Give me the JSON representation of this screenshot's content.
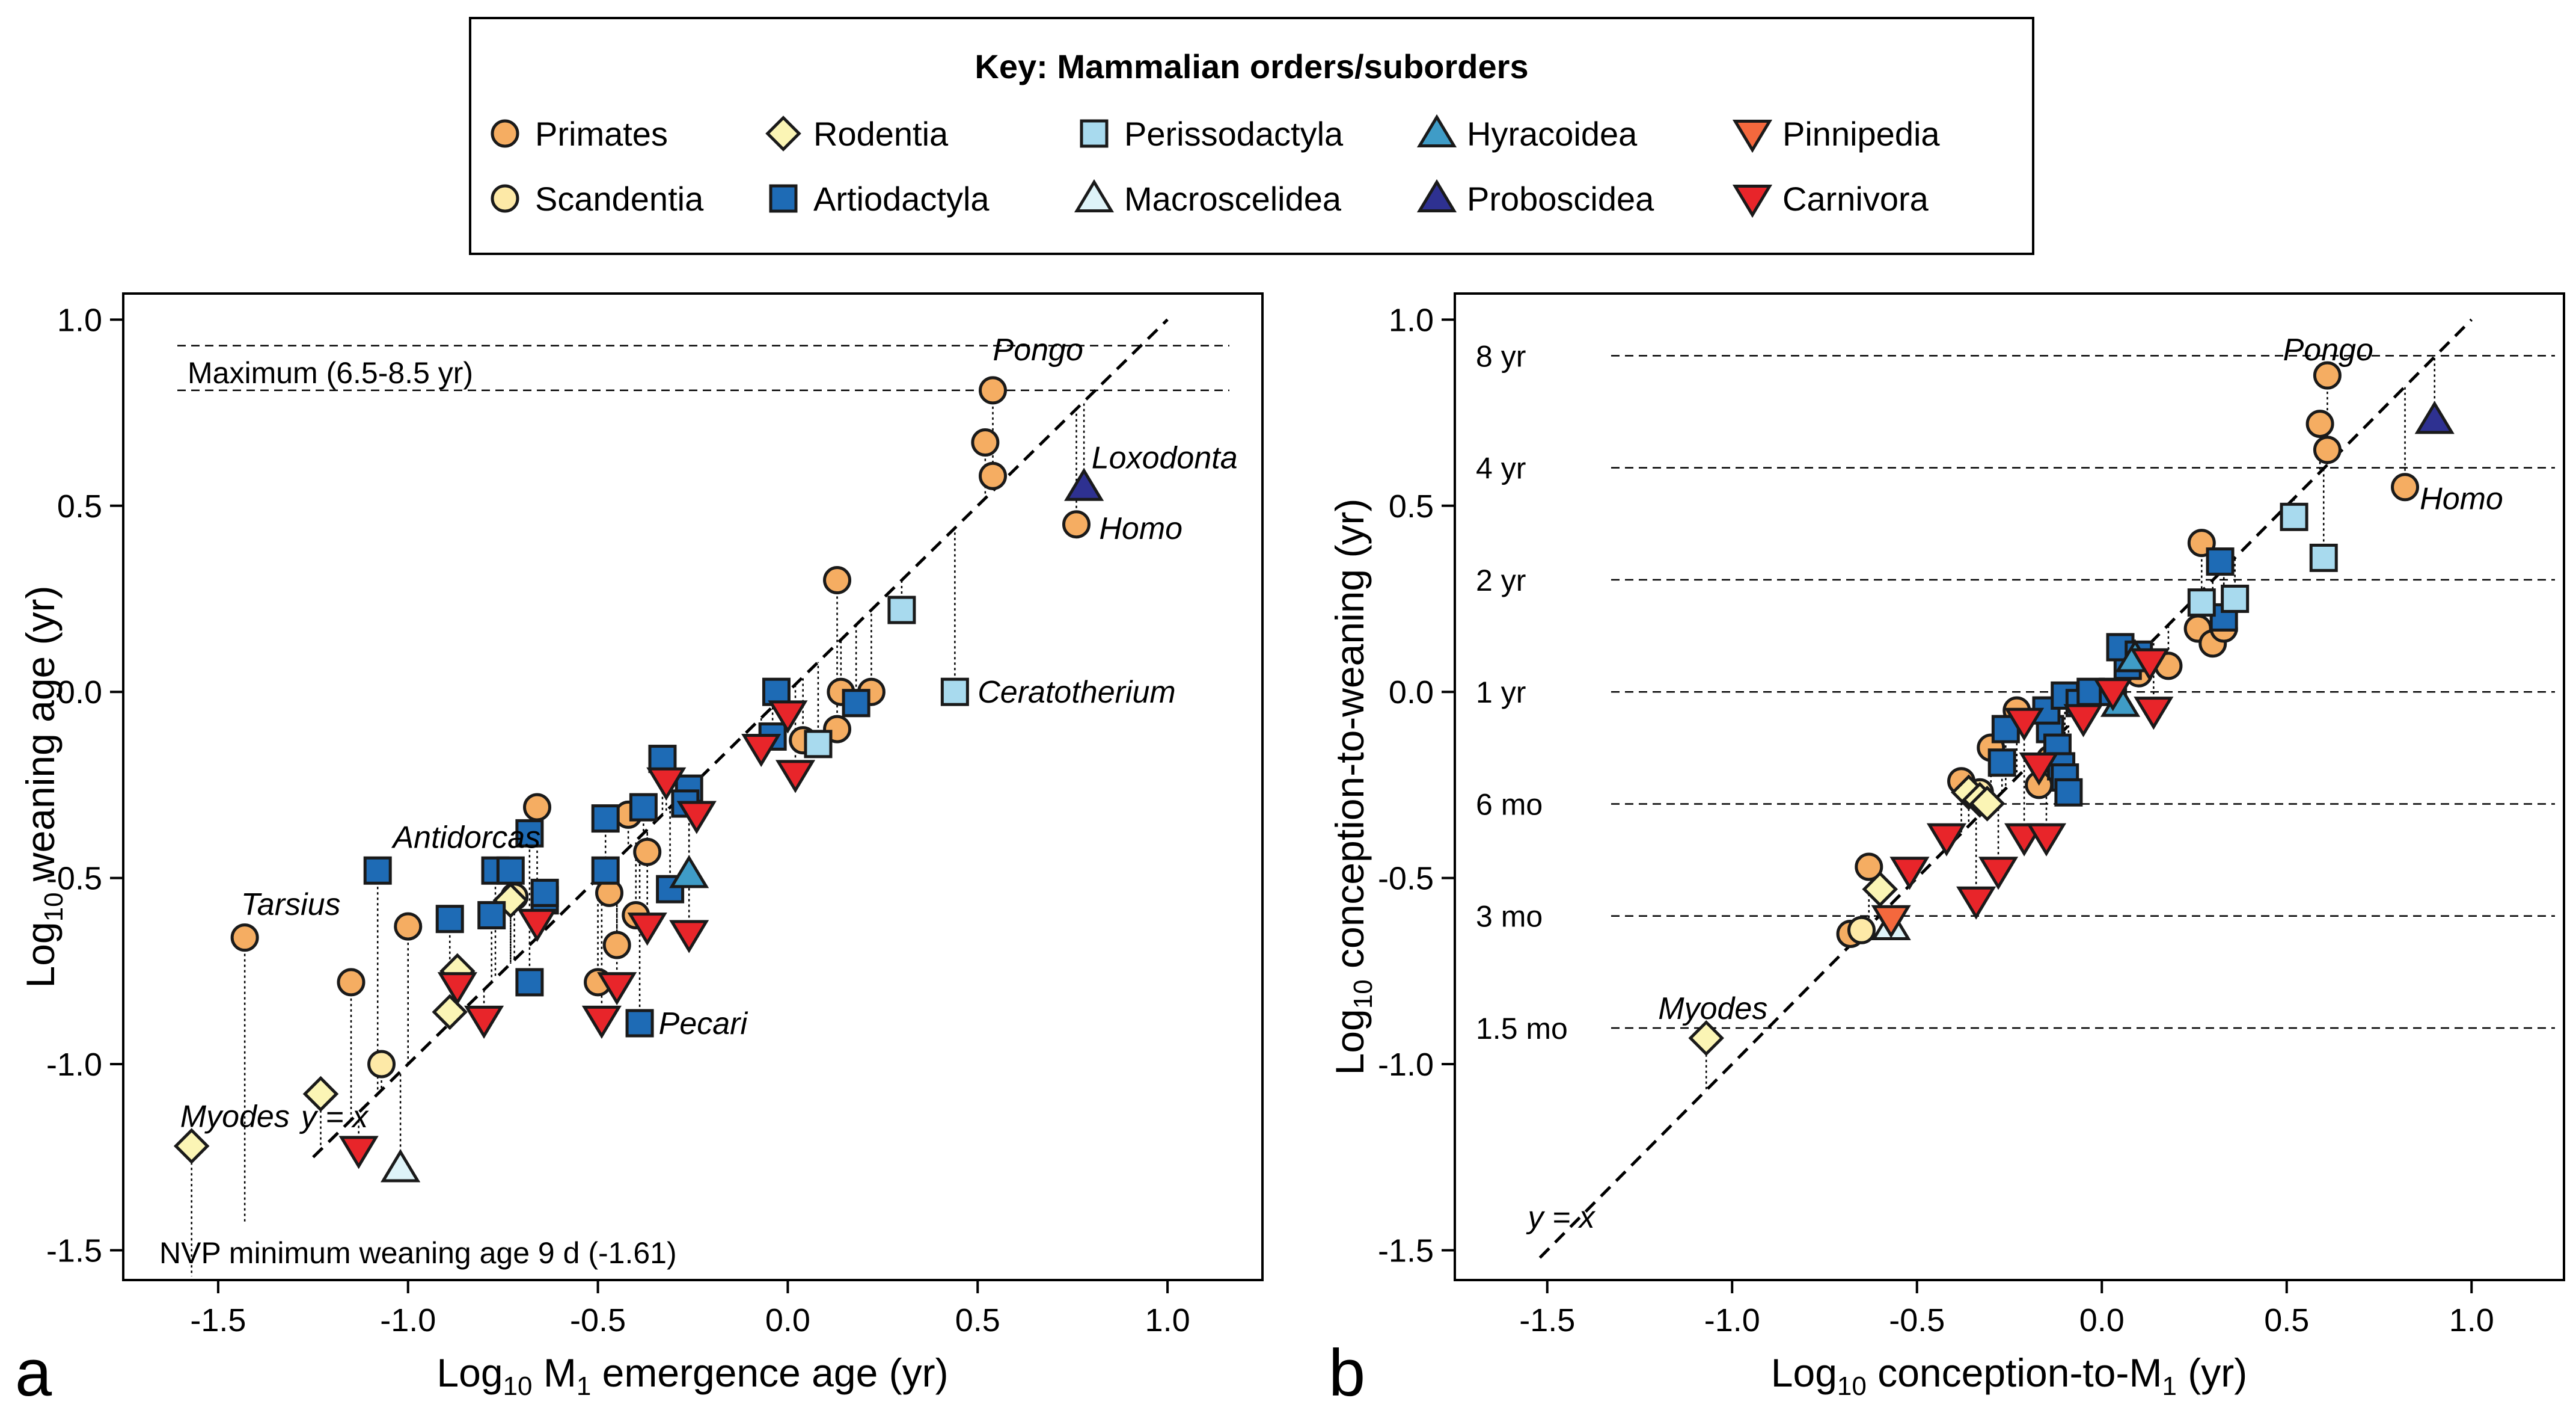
{
  "colors": {
    "Primates": "#f5ad62",
    "Scandentia": "#fde9a7",
    "Rodentia": "#fbf5b5",
    "Artiodactyla": "#1e6bb5",
    "Perissodactyla": "#a8daee",
    "Macroscelidea": "#def3f8",
    "Hyracoidea": "#3f9cc7",
    "Proboscidea": "#2e3191",
    "Pinnipedia": "#f4683d",
    "Carnivora": "#e8252a"
  },
  "legend": {
    "title": "Key:  Mammalian orders/suborders",
    "items": [
      {
        "label": "Primates",
        "shape": "circle",
        "color": "#f5ad62"
      },
      {
        "label": "Rodentia",
        "shape": "diamond",
        "color": "#fbf5b5"
      },
      {
        "label": "Perissodactyla",
        "shape": "square",
        "color": "#a8daee"
      },
      {
        "label": "Hyracoidea",
        "shape": "triangle-up",
        "color": "#3f9cc7"
      },
      {
        "label": "Pinnipedia",
        "shape": "triangle-down",
        "color": "#f4683d"
      },
      {
        "label": "Scandentia",
        "shape": "circle",
        "color": "#fde9a7"
      },
      {
        "label": "Artiodactyla",
        "shape": "square",
        "color": "#1e6bb5"
      },
      {
        "label": "Macroscelidea",
        "shape": "triangle-up",
        "color": "#def3f8"
      },
      {
        "label": "Proboscidea",
        "shape": "triangle-up",
        "color": "#2e3191"
      },
      {
        "label": "Carnivora",
        "shape": "triangle-down",
        "color": "#e8252a"
      }
    ]
  },
  "chart_data": [
    {
      "type": "scatter",
      "panel_label": "a",
      "xlabel": {
        "pre": "Log",
        "sub": "10",
        "mid": " M",
        "sub2": "1",
        "post": " emergence age (yr)"
      },
      "ylabel": {
        "pre": "Log",
        "sub": "10",
        "post": " weaning age (yr)"
      },
      "xlim": [
        -1.75,
        1.25
      ],
      "ylim": [
        -1.58,
        1.07
      ],
      "xticks": [
        -1.5,
        -1.0,
        -0.5,
        0.0,
        0.5,
        1.0
      ],
      "yticks": [
        -1.5,
        -1.0,
        -0.5,
        0.0,
        0.5,
        1.0
      ],
      "xtick_labels": [
        "-1.5",
        "-1.0",
        "-0.5",
        "0.0",
        "0.5",
        "1.0"
      ],
      "ytick_labels": [
        "-1.5",
        "-1.0",
        "-0.5",
        "0.0",
        "0.5",
        "1.0"
      ],
      "identity_line": {
        "label": "y = x",
        "from": [
          -1.25,
          -1.25
        ],
        "to": [
          1.0,
          1.0
        ]
      },
      "reference_lines": [
        {
          "y": 0.93,
          "label": ""
        },
        {
          "y": 0.81,
          "label": "Maximum (6.5-8.5 yr)"
        }
      ],
      "bottom_note": "NVP minimum weaning age 9 d (-1.61)",
      "annotations": [
        {
          "text": "Pongo",
          "x": 0.54,
          "y": 0.92
        },
        {
          "text": "Loxodonta",
          "x": 0.8,
          "y": 0.63
        },
        {
          "text": "Homo",
          "x": 0.82,
          "y": 0.44
        },
        {
          "text": "Ceratotherium",
          "x": 0.5,
          "y": 0.0
        },
        {
          "text": "Antidorcas",
          "x": -1.04,
          "y": -0.39
        },
        {
          "text": "Tarsius",
          "x": -1.44,
          "y": -0.57
        },
        {
          "text": "Myodes",
          "x": -1.6,
          "y": -1.14
        },
        {
          "text": "Pecari",
          "x": -0.34,
          "y": -0.89
        }
      ],
      "points": [
        {
          "order": "Primates",
          "x": 0.54,
          "y": 0.81
        },
        {
          "order": "Primates",
          "x": 0.52,
          "y": 0.67
        },
        {
          "order": "Primates",
          "x": 0.54,
          "y": 0.58
        },
        {
          "order": "Primates",
          "x": 0.76,
          "y": 0.45
        },
        {
          "order": "Primates",
          "x": 0.13,
          "y": 0.3
        },
        {
          "order": "Primates",
          "x": 0.14,
          "y": 0.0
        },
        {
          "order": "Primates",
          "x": 0.22,
          "y": 0.0
        },
        {
          "order": "Primates",
          "x": 0.13,
          "y": -0.1
        },
        {
          "order": "Primates",
          "x": 0.04,
          "y": -0.13
        },
        {
          "order": "Primates",
          "x": -0.66,
          "y": -0.31
        },
        {
          "order": "Primates",
          "x": -0.42,
          "y": -0.33
        },
        {
          "order": "Primates",
          "x": -0.37,
          "y": -0.43
        },
        {
          "order": "Primates",
          "x": -0.47,
          "y": -0.54
        },
        {
          "order": "Primates",
          "x": -0.4,
          "y": -0.6
        },
        {
          "order": "Primates",
          "x": -0.45,
          "y": -0.68
        },
        {
          "order": "Primates",
          "x": -0.5,
          "y": -0.78
        },
        {
          "order": "Primates",
          "x": -1.0,
          "y": -0.63
        },
        {
          "order": "Primates",
          "x": -1.43,
          "y": -0.66
        },
        {
          "order": "Primates",
          "x": -1.15,
          "y": -0.78
        },
        {
          "order": "Scandentia",
          "x": -1.07,
          "y": -1.0
        },
        {
          "order": "Scandentia",
          "x": -0.72,
          "y": -0.55
        },
        {
          "order": "Rodentia",
          "x": -1.57,
          "y": -1.22
        },
        {
          "order": "Rodentia",
          "x": -1.23,
          "y": -1.08
        },
        {
          "order": "Rodentia",
          "x": -0.89,
          "y": -0.86
        },
        {
          "order": "Rodentia",
          "x": -0.87,
          "y": -0.75
        },
        {
          "order": "Rodentia",
          "x": -0.73,
          "y": -0.56
        },
        {
          "order": "Artiodactyla",
          "x": -1.08,
          "y": -0.48
        },
        {
          "order": "Artiodactyla",
          "x": -0.89,
          "y": -0.61
        },
        {
          "order": "Artiodactyla",
          "x": -0.77,
          "y": -0.48
        },
        {
          "order": "Artiodactyla",
          "x": -0.73,
          "y": -0.48
        },
        {
          "order": "Artiodactyla",
          "x": -0.78,
          "y": -0.6
        },
        {
          "order": "Artiodactyla",
          "x": -0.68,
          "y": -0.38
        },
        {
          "order": "Artiodactyla",
          "x": -0.68,
          "y": -0.78
        },
        {
          "order": "Artiodactyla",
          "x": -0.64,
          "y": -0.56
        },
        {
          "order": "Artiodactyla",
          "x": -0.64,
          "y": -0.54
        },
        {
          "order": "Artiodactyla",
          "x": -0.48,
          "y": -0.34
        },
        {
          "order": "Artiodactyla",
          "x": -0.48,
          "y": -0.48
        },
        {
          "order": "Artiodactyla",
          "x": -0.38,
          "y": -0.31
        },
        {
          "order": "Artiodactyla",
          "x": -0.33,
          "y": -0.18
        },
        {
          "order": "Artiodactyla",
          "x": -0.26,
          "y": -0.26
        },
        {
          "order": "Artiodactyla",
          "x": -0.27,
          "y": -0.3
        },
        {
          "order": "Artiodactyla",
          "x": -0.31,
          "y": -0.53
        },
        {
          "order": "Artiodactyla",
          "x": -0.39,
          "y": -0.89
        },
        {
          "order": "Artiodactyla",
          "x": -0.04,
          "y": -0.12
        },
        {
          "order": "Artiodactyla",
          "x": -0.03,
          "y": 0.0
        },
        {
          "order": "Artiodactyla",
          "x": 0.18,
          "y": -0.03
        },
        {
          "order": "Perissodactyla",
          "x": 0.3,
          "y": 0.22
        },
        {
          "order": "Perissodactyla",
          "x": 0.44,
          "y": 0.0
        },
        {
          "order": "Perissodactyla",
          "x": 0.08,
          "y": -0.14
        },
        {
          "order": "Hyracoidea",
          "x": -0.26,
          "y": -0.49
        },
        {
          "order": "Macroscelidea",
          "x": -1.02,
          "y": -1.28
        },
        {
          "order": "Proboscidea",
          "x": 0.78,
          "y": 0.55
        },
        {
          "order": "Carnivora",
          "x": -0.32,
          "y": -0.24
        },
        {
          "order": "Carnivora",
          "x": -0.24,
          "y": -0.33
        },
        {
          "order": "Carnivora",
          "x": -0.66,
          "y": -0.62
        },
        {
          "order": "Carnivora",
          "x": -0.37,
          "y": -0.63
        },
        {
          "order": "Carnivora",
          "x": -0.26,
          "y": -0.65
        },
        {
          "order": "Carnivora",
          "x": -0.45,
          "y": -0.79
        },
        {
          "order": "Carnivora",
          "x": -0.49,
          "y": -0.88
        },
        {
          "order": "Carnivora",
          "x": -0.8,
          "y": -0.88
        },
        {
          "order": "Carnivora",
          "x": -0.87,
          "y": -0.79
        },
        {
          "order": "Carnivora",
          "x": -1.13,
          "y": -1.23
        },
        {
          "order": "Carnivora",
          "x": -0.07,
          "y": -0.15
        },
        {
          "order": "Carnivora",
          "x": 0.0,
          "y": -0.06
        },
        {
          "order": "Carnivora",
          "x": 0.02,
          "y": -0.22
        }
      ]
    },
    {
      "type": "scatter",
      "panel_label": "b",
      "xlabel": {
        "pre": "Log",
        "sub": "10",
        "mid": " conception-to-M",
        "sub2": "1",
        "post": " (yr)"
      },
      "ylabel": {
        "pre": "Log",
        "sub": "10",
        "post": " conception-to-weaning (yr)"
      },
      "xlim": [
        -1.75,
        1.25
      ],
      "ylim": [
        -1.58,
        1.07
      ],
      "xticks": [
        -1.5,
        -1.0,
        -0.5,
        0.0,
        0.5,
        1.0
      ],
      "yticks": [
        -1.5,
        -1.0,
        -0.5,
        0.0,
        0.5,
        1.0
      ],
      "xtick_labels": [
        "-1.5",
        "-1.0",
        "-0.5",
        "0.0",
        "0.5",
        "1.0"
      ],
      "ytick_labels": [
        "-1.5",
        "-1.0",
        "-0.5",
        "0.0",
        "0.5",
        "1.0"
      ],
      "identity_line": {
        "label": "y = x",
        "from": [
          -1.52,
          -1.52
        ],
        "to": [
          1.0,
          1.0
        ]
      },
      "reference_lines": [
        {
          "y": 0.903,
          "label": "8 yr"
        },
        {
          "y": 0.602,
          "label": "4 yr"
        },
        {
          "y": 0.301,
          "label": "2 yr"
        },
        {
          "y": 0.0,
          "label": "1 yr"
        },
        {
          "y": -0.301,
          "label": "6 mo"
        },
        {
          "y": -0.602,
          "label": "3 mo"
        },
        {
          "y": -0.903,
          "label": "1.5 mo"
        }
      ],
      "bottom_note": "",
      "annotations": [
        {
          "text": "Pongo",
          "x": 0.49,
          "y": 0.92
        },
        {
          "text": "Homo",
          "x": 0.86,
          "y": 0.52
        },
        {
          "text": "Myodes",
          "x": -1.2,
          "y": -0.85
        }
      ],
      "points": [
        {
          "order": "Primates",
          "x": 0.61,
          "y": 0.85
        },
        {
          "order": "Primates",
          "x": 0.59,
          "y": 0.72
        },
        {
          "order": "Primates",
          "x": 0.61,
          "y": 0.65
        },
        {
          "order": "Primates",
          "x": 0.82,
          "y": 0.55
        },
        {
          "order": "Primates",
          "x": 0.27,
          "y": 0.4
        },
        {
          "order": "Primates",
          "x": 0.26,
          "y": 0.17
        },
        {
          "order": "Primates",
          "x": 0.3,
          "y": 0.13
        },
        {
          "order": "Primates",
          "x": 0.33,
          "y": 0.17
        },
        {
          "order": "Primates",
          "x": 0.18,
          "y": 0.07
        },
        {
          "order": "Primates",
          "x": 0.1,
          "y": 0.05
        },
        {
          "order": "Primates",
          "x": -0.38,
          "y": -0.24
        },
        {
          "order": "Primates",
          "x": -0.3,
          "y": -0.15
        },
        {
          "order": "Primates",
          "x": -0.23,
          "y": -0.05
        },
        {
          "order": "Primates",
          "x": -0.17,
          "y": -0.25
        },
        {
          "order": "Primates",
          "x": -0.14,
          "y": -0.18
        },
        {
          "order": "Primates",
          "x": -0.11,
          "y": -0.2
        },
        {
          "order": "Primates",
          "x": -0.63,
          "y": -0.47
        },
        {
          "order": "Primates",
          "x": -0.68,
          "y": -0.65
        },
        {
          "order": "Scandentia",
          "x": -0.65,
          "y": -0.64
        },
        {
          "order": "Scandentia",
          "x": -0.33,
          "y": -0.27
        },
        {
          "order": "Rodentia",
          "x": -1.07,
          "y": -0.93
        },
        {
          "order": "Rodentia",
          "x": -0.6,
          "y": -0.53
        },
        {
          "order": "Rodentia",
          "x": -0.36,
          "y": -0.27
        },
        {
          "order": "Rodentia",
          "x": -0.33,
          "y": -0.29
        },
        {
          "order": "Rodentia",
          "x": -0.31,
          "y": -0.3
        },
        {
          "order": "Artiodactyla",
          "x": -0.26,
          "y": -0.1
        },
        {
          "order": "Artiodactyla",
          "x": -0.27,
          "y": -0.19
        },
        {
          "order": "Artiodactyla",
          "x": -0.14,
          "y": -0.1
        },
        {
          "order": "Artiodactyla",
          "x": -0.12,
          "y": -0.15
        },
        {
          "order": "Artiodactyla",
          "x": -0.11,
          "y": -0.2
        },
        {
          "order": "Artiodactyla",
          "x": -0.1,
          "y": -0.23
        },
        {
          "order": "Artiodactyla",
          "x": -0.09,
          "y": -0.27
        },
        {
          "order": "Artiodactyla",
          "x": -0.15,
          "y": -0.05
        },
        {
          "order": "Artiodactyla",
          "x": -0.1,
          "y": -0.01
        },
        {
          "order": "Artiodactyla",
          "x": -0.06,
          "y": -0.03
        },
        {
          "order": "Artiodactyla",
          "x": -0.03,
          "y": 0.0
        },
        {
          "order": "Artiodactyla",
          "x": 0.03,
          "y": 0.0
        },
        {
          "order": "Artiodactyla",
          "x": 0.07,
          "y": 0.07
        },
        {
          "order": "Artiodactyla",
          "x": 0.05,
          "y": 0.12
        },
        {
          "order": "Artiodactyla",
          "x": 0.1,
          "y": 0.1
        },
        {
          "order": "Artiodactyla",
          "x": 0.33,
          "y": 0.2
        },
        {
          "order": "Artiodactyla",
          "x": 0.32,
          "y": 0.35
        },
        {
          "order": "Perissodactyla",
          "x": 0.27,
          "y": 0.24
        },
        {
          "order": "Perissodactyla",
          "x": 0.36,
          "y": 0.25
        },
        {
          "order": "Perissodactyla",
          "x": 0.52,
          "y": 0.47
        },
        {
          "order": "Perissodactyla",
          "x": 0.6,
          "y": 0.36
        },
        {
          "order": "Hyracoidea",
          "x": 0.09,
          "y": 0.09
        },
        {
          "order": "Hyracoidea",
          "x": 0.05,
          "y": -0.03
        },
        {
          "order": "Macroscelidea",
          "x": -0.57,
          "y": -0.63
        },
        {
          "order": "Proboscidea",
          "x": 0.9,
          "y": 0.73
        },
        {
          "order": "Pinnipedia",
          "x": -0.57,
          "y": -0.61
        },
        {
          "order": "Carnivora",
          "x": -0.52,
          "y": -0.48
        },
        {
          "order": "Carnivora",
          "x": -0.42,
          "y": -0.39
        },
        {
          "order": "Carnivora",
          "x": -0.34,
          "y": -0.56
        },
        {
          "order": "Carnivora",
          "x": -0.28,
          "y": -0.48
        },
        {
          "order": "Carnivora",
          "x": -0.21,
          "y": -0.39
        },
        {
          "order": "Carnivora",
          "x": -0.15,
          "y": -0.39
        },
        {
          "order": "Carnivora",
          "x": -0.17,
          "y": -0.2
        },
        {
          "order": "Carnivora",
          "x": -0.21,
          "y": -0.08
        },
        {
          "order": "Carnivora",
          "x": -0.05,
          "y": -0.07
        },
        {
          "order": "Carnivora",
          "x": 0.03,
          "y": 0.0
        },
        {
          "order": "Carnivora",
          "x": 0.13,
          "y": 0.08
        },
        {
          "order": "Carnivora",
          "x": 0.14,
          "y": -0.05
        }
      ]
    }
  ]
}
